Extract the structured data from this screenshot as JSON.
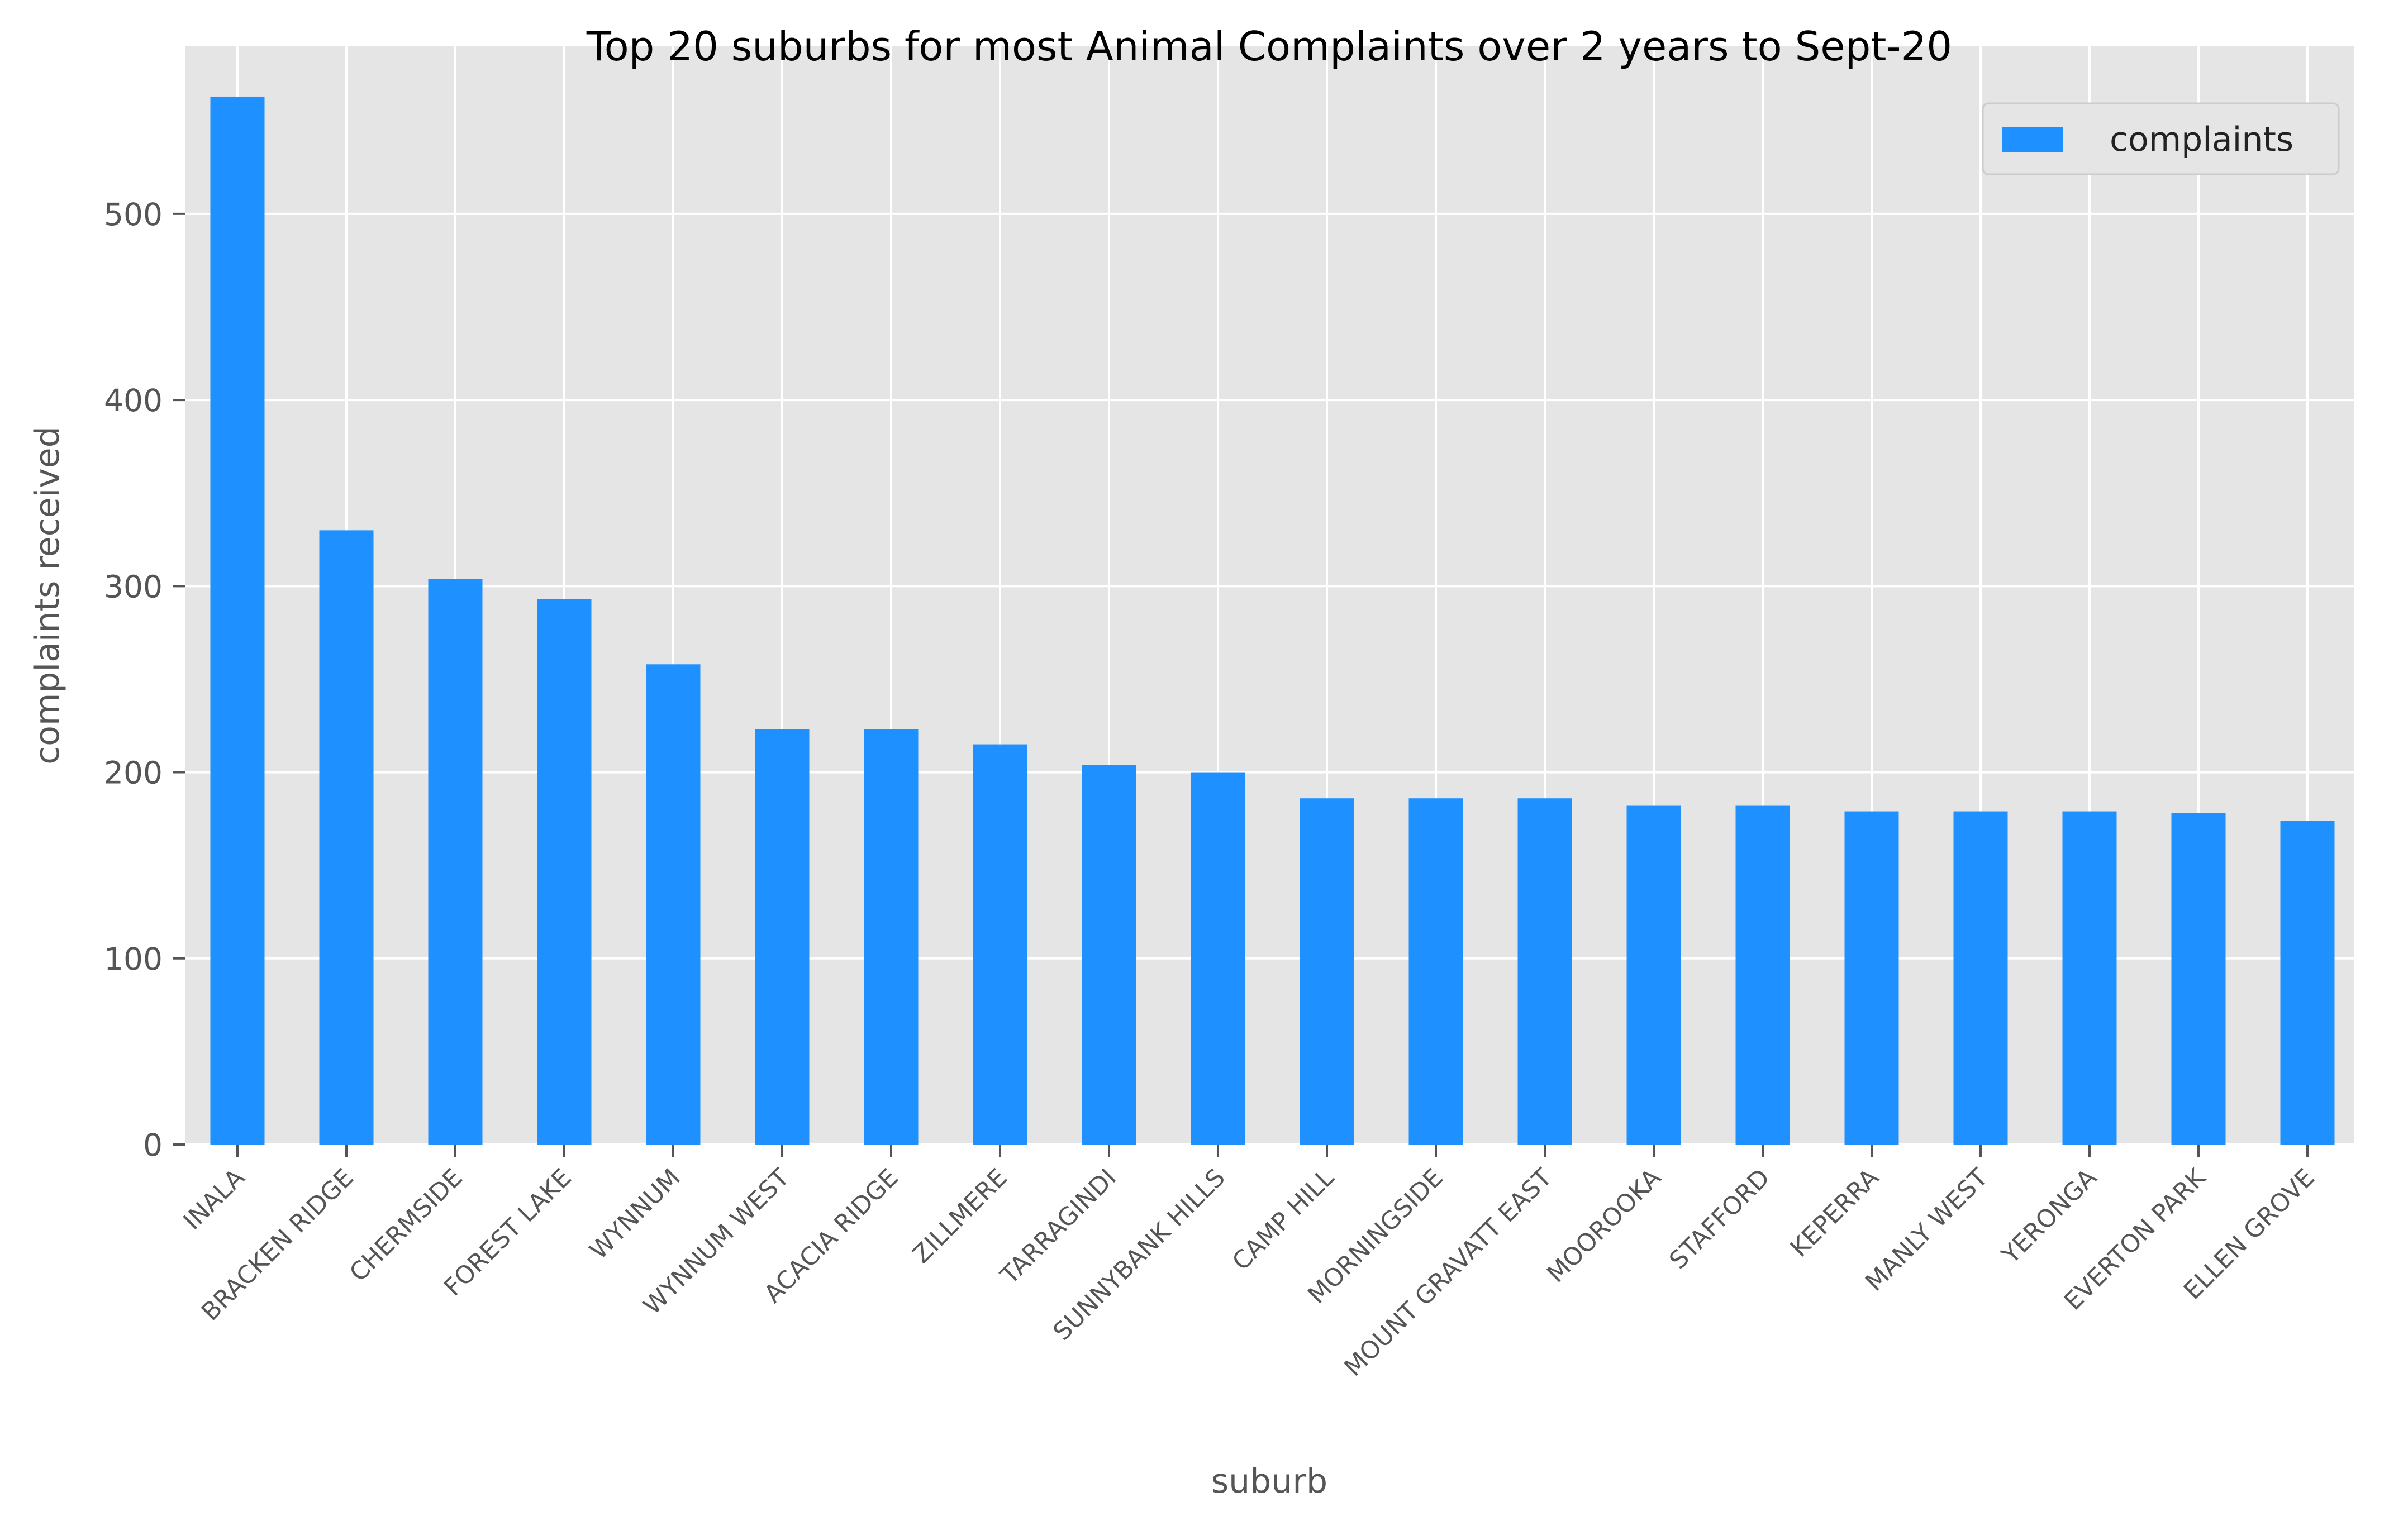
{
  "chart_data": {
    "type": "bar",
    "title": "Top 20 suburbs for most Animal Complaints over 2 years to Sept-20",
    "xlabel": "suburb",
    "ylabel": "complaints received",
    "categories": [
      "INALA",
      "BRACKEN RIDGE",
      "CHERMSIDE",
      "FOREST LAKE",
      "WYNNUM",
      "WYNNUM WEST",
      "ACACIA RIDGE",
      "ZILLMERE",
      "TARRAGINDI",
      "SUNNYBANK HILLS",
      "CAMP HILL",
      "MORNINGSIDE",
      "MOUNT GRAVATT EAST",
      "MOOROOKA",
      "STAFFORD",
      "KEPERRA",
      "MANLY WEST",
      "YERONGA",
      "EVERTON PARK",
      "ELLEN GROVE"
    ],
    "series": [
      {
        "name": "complaints",
        "values": [
          563,
          330,
          304,
          293,
          258,
          223,
          223,
          215,
          204,
          200,
          186,
          186,
          186,
          182,
          182,
          179,
          179,
          179,
          178,
          174
        ]
      }
    ],
    "ylim": [
      0,
      590
    ],
    "yticks": [
      0,
      100,
      200,
      300,
      400,
      500
    ],
    "grid": true,
    "legend_position": "top-right",
    "colors": {
      "bar": "#1e90ff",
      "plot_bg": "#e5e5e5",
      "grid": "#ffffff",
      "axis_text": "#555555",
      "tick_mark": "#555555"
    }
  }
}
